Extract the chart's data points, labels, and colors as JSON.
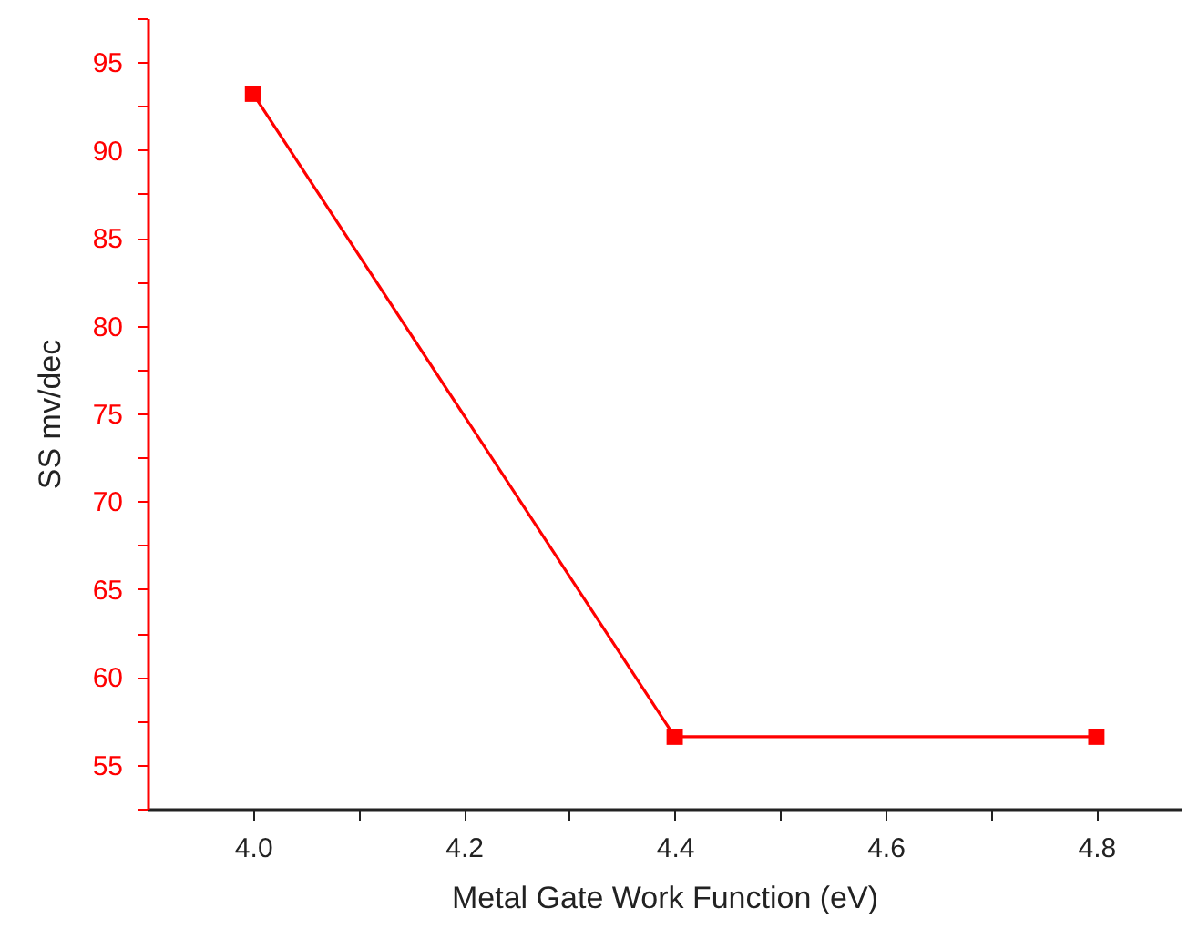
{
  "chart_data": {
    "type": "line",
    "xlabel": "Metal Gate Work Function (eV)",
    "ylabel": "SS mv/dec",
    "x": [
      4.0,
      4.4,
      4.8
    ],
    "series": [
      {
        "color": "#ff0000",
        "values": [
          93.2,
          56.6,
          56.6
        ]
      }
    ],
    "xlim": [
      3.9,
      4.88
    ],
    "ylim": [
      52.5,
      97.5
    ],
    "xticks": [
      {
        "value": 4,
        "label": "4.0"
      },
      {
        "value": 4.1,
        "label": null
      },
      4.2,
      {
        "value": 4.3,
        "label": null
      },
      4.4,
      {
        "value": 4.5,
        "label": null
      },
      4.6,
      {
        "value": 4.7,
        "label": null
      },
      4.8
    ],
    "yticks": [
      {
        "value": 52.5,
        "label": null
      },
      55,
      {
        "value": 57.5,
        "label": null
      },
      60,
      {
        "value": 62.5,
        "label": null
      },
      65,
      {
        "value": 67.5,
        "label": null
      },
      70,
      {
        "value": 72.5,
        "label": null
      },
      75,
      {
        "value": 77.5,
        "label": null
      },
      80,
      {
        "value": 82.5,
        "label": null
      },
      85,
      {
        "value": 87.5,
        "label": null
      },
      90,
      {
        "value": 92.5,
        "label": null
      },
      95,
      {
        "value": 97.5,
        "label": null
      }
    ],
    "grid": false,
    "marker": "square",
    "line_style": "solid"
  }
}
